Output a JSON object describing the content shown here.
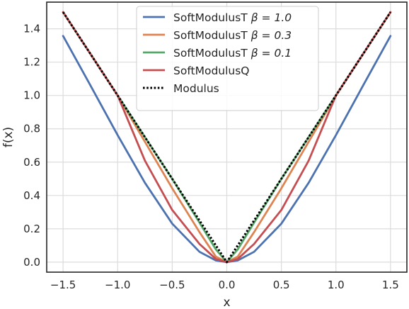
{
  "chart_data": {
    "type": "line",
    "xlabel": "x",
    "ylabel": "f(x)",
    "xlim": [
      -1.65,
      1.65
    ],
    "ylim": [
      -0.06,
      1.56
    ],
    "xticks": [
      -1.5,
      -1.0,
      -0.5,
      0.0,
      0.5,
      1.0,
      1.5
    ],
    "xtick_labels": [
      "−1.5",
      "−1.0",
      "−0.5",
      "0.0",
      "0.5",
      "1.0",
      "1.5"
    ],
    "yticks": [
      0.0,
      0.2,
      0.4,
      0.6,
      0.8,
      1.0,
      1.2,
      1.4
    ],
    "ytick_labels": [
      "0.0",
      "0.2",
      "0.4",
      "0.6",
      "0.8",
      "1.0",
      "1.2",
      "1.4"
    ],
    "grid": true,
    "legend_position": "top-center",
    "x": [
      -1.5,
      -1.25,
      -1.0,
      -0.75,
      -0.5,
      -0.25,
      -0.1,
      0.0,
      0.1,
      0.25,
      0.5,
      0.75,
      1.0,
      1.25,
      1.5
    ],
    "series": [
      {
        "name": "SoftModulusT β = 1.0",
        "legend_prefix": "SoftModulusT ",
        "legend_math": "β = 1.0",
        "color": "#4c72b0",
        "style": "solid",
        "values": [
          1.357,
          1.061,
          0.762,
          0.476,
          0.231,
          0.062,
          0.01,
          0.0,
          0.01,
          0.062,
          0.231,
          0.476,
          0.762,
          1.061,
          1.357
        ]
      },
      {
        "name": "SoftModulusT β = 0.3",
        "legend_prefix": "SoftModulusT ",
        "legend_math": "β = 0.3",
        "color": "#dd8452",
        "style": "solid",
        "values": [
          1.5,
          1.25,
          1.0,
          0.722,
          0.443,
          0.18,
          0.033,
          0.0,
          0.033,
          0.18,
          0.443,
          0.722,
          1.0,
          1.25,
          1.5
        ]
      },
      {
        "name": "SoftModulusT β = 0.1",
        "legend_prefix": "SoftModulusT ",
        "legend_math": "β = 0.1",
        "color": "#55a868",
        "style": "solid",
        "values": [
          1.5,
          1.25,
          1.0,
          0.75,
          0.5,
          0.237,
          0.076,
          0.0,
          0.076,
          0.237,
          0.5,
          0.75,
          1.0,
          1.25,
          1.5
        ]
      },
      {
        "name": "SoftModulusQ",
        "legend_prefix": "SoftModulusQ",
        "legend_math": "",
        "color": "#c44e52",
        "style": "solid",
        "values": [
          1.5,
          1.25,
          1.0,
          0.609,
          0.313,
          0.109,
          0.019,
          0.0,
          0.019,
          0.109,
          0.313,
          0.609,
          1.0,
          1.25,
          1.5
        ]
      },
      {
        "name": "Modulus",
        "legend_prefix": "Modulus",
        "legend_math": "",
        "color": "#000000",
        "style": "dotted",
        "values": [
          1.5,
          1.25,
          1.0,
          0.75,
          0.5,
          0.25,
          0.1,
          0.0,
          0.1,
          0.25,
          0.5,
          0.75,
          1.0,
          1.25,
          1.5
        ]
      }
    ]
  }
}
